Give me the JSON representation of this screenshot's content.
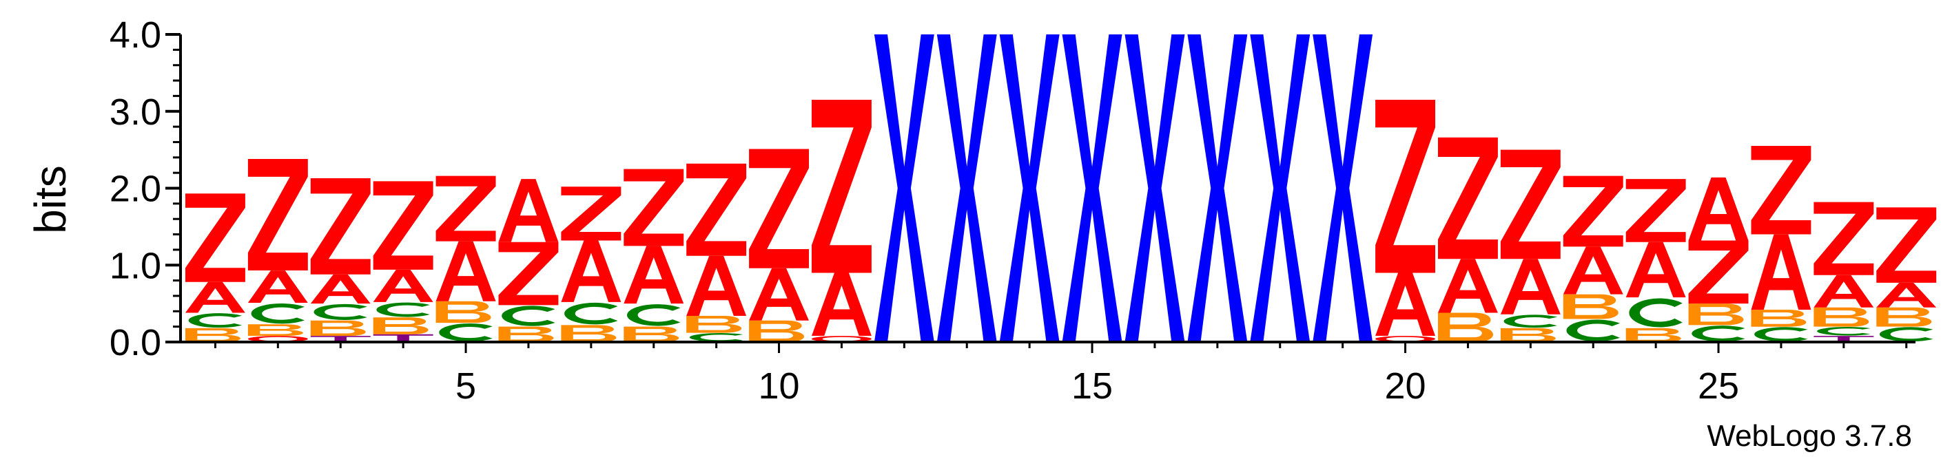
{
  "chart_data": {
    "type": "sequence-logo",
    "ylabel": "bits",
    "ylim": [
      0,
      4.0
    ],
    "y_ticks": [
      "0.0",
      "1.0",
      "2.0",
      "3.0",
      "4.0"
    ],
    "x_ticks": [
      5,
      10,
      15,
      20,
      25
    ],
    "x_range": [
      1,
      28
    ],
    "footer": "WebLogo 3.7.8",
    "colors": {
      "Z": "#ff0000",
      "A": "#ff0000",
      "X": "#0000ff",
      "C": "#008000",
      "B": "#ff8c00",
      "T": "#800080",
      "O": "#ff0000"
    },
    "positions": [
      {
        "pos": 1,
        "stack": [
          [
            "B",
            0.18
          ],
          [
            "C",
            0.2
          ],
          [
            "A",
            0.4
          ],
          [
            "Z",
            1.15
          ]
        ]
      },
      {
        "pos": 2,
        "stack": [
          [
            "O",
            0.08
          ],
          [
            "B",
            0.15
          ],
          [
            "C",
            0.28
          ],
          [
            "A",
            0.42
          ],
          [
            "Z",
            1.45
          ]
        ]
      },
      {
        "pos": 3,
        "stack": [
          [
            "T",
            0.08
          ],
          [
            "B",
            0.2
          ],
          [
            "C",
            0.22
          ],
          [
            "A",
            0.38
          ],
          [
            "Z",
            1.25
          ]
        ]
      },
      {
        "pos": 4,
        "stack": [
          [
            "T",
            0.1
          ],
          [
            "B",
            0.22
          ],
          [
            "C",
            0.2
          ],
          [
            "A",
            0.42
          ],
          [
            "Z",
            1.15
          ]
        ]
      },
      {
        "pos": 5,
        "stack": [
          [
            "C",
            0.25
          ],
          [
            "B",
            0.28
          ],
          [
            "A",
            0.78
          ],
          [
            "Z",
            0.85
          ]
        ]
      },
      {
        "pos": 6,
        "stack": [
          [
            "B",
            0.2
          ],
          [
            "C",
            0.28
          ],
          [
            "Z",
            0.82
          ],
          [
            "A",
            0.82
          ]
        ]
      },
      {
        "pos": 7,
        "stack": [
          [
            "B",
            0.22
          ],
          [
            "C",
            0.3
          ],
          [
            "A",
            0.8
          ],
          [
            "Z",
            0.7
          ]
        ]
      },
      {
        "pos": 8,
        "stack": [
          [
            "B",
            0.2
          ],
          [
            "C",
            0.3
          ],
          [
            "A",
            0.75
          ],
          [
            "Z",
            1.0
          ]
        ]
      },
      {
        "pos": 9,
        "stack": [
          [
            "C",
            0.12
          ],
          [
            "B",
            0.22
          ],
          [
            "A",
            0.78
          ],
          [
            "Z",
            1.2
          ]
        ]
      },
      {
        "pos": 10,
        "stack": [
          [
            "B",
            0.28
          ],
          [
            "A",
            0.68
          ],
          [
            "Z",
            1.55
          ]
        ]
      },
      {
        "pos": 11,
        "stack": [
          [
            "O",
            0.08
          ],
          [
            "A",
            0.82
          ],
          [
            "Z",
            2.25
          ]
        ]
      },
      {
        "pos": 12,
        "stack": [
          [
            "X",
            4.0
          ]
        ]
      },
      {
        "pos": 13,
        "stack": [
          [
            "X",
            4.0
          ]
        ]
      },
      {
        "pos": 14,
        "stack": [
          [
            "X",
            4.0
          ]
        ]
      },
      {
        "pos": 15,
        "stack": [
          [
            "X",
            4.0
          ]
        ]
      },
      {
        "pos": 16,
        "stack": [
          [
            "X",
            4.0
          ]
        ]
      },
      {
        "pos": 17,
        "stack": [
          [
            "X",
            4.0
          ]
        ]
      },
      {
        "pos": 18,
        "stack": [
          [
            "X",
            4.0
          ]
        ]
      },
      {
        "pos": 19,
        "stack": [
          [
            "X",
            4.0
          ]
        ]
      },
      {
        "pos": 20,
        "stack": [
          [
            "O",
            0.08
          ],
          [
            "A",
            0.82
          ],
          [
            "Z",
            2.25
          ]
        ]
      },
      {
        "pos": 21,
        "stack": [
          [
            "B",
            0.38
          ],
          [
            "A",
            0.7
          ],
          [
            "Z",
            1.58
          ]
        ]
      },
      {
        "pos": 22,
        "stack": [
          [
            "B",
            0.18
          ],
          [
            "C",
            0.18
          ],
          [
            "A",
            0.72
          ],
          [
            "Z",
            1.42
          ]
        ]
      },
      {
        "pos": 23,
        "stack": [
          [
            "C",
            0.3
          ],
          [
            "B",
            0.32
          ],
          [
            "A",
            0.62
          ],
          [
            "Z",
            0.92
          ]
        ]
      },
      {
        "pos": 24,
        "stack": [
          [
            "B",
            0.18
          ],
          [
            "C",
            0.4
          ],
          [
            "A",
            0.72
          ],
          [
            "Z",
            0.82
          ]
        ]
      },
      {
        "pos": 25,
        "stack": [
          [
            "C",
            0.22
          ],
          [
            "B",
            0.28
          ],
          [
            "Z",
            0.82
          ],
          [
            "A",
            0.82
          ]
        ]
      },
      {
        "pos": 26,
        "stack": [
          [
            "C",
            0.2
          ],
          [
            "B",
            0.22
          ],
          [
            "A",
            0.98
          ],
          [
            "Z",
            1.15
          ]
        ]
      },
      {
        "pos": 27,
        "stack": [
          [
            "T",
            0.08
          ],
          [
            "C",
            0.12
          ],
          [
            "B",
            0.25
          ],
          [
            "A",
            0.42
          ],
          [
            "Z",
            0.95
          ]
        ]
      },
      {
        "pos": 28,
        "stack": [
          [
            "C",
            0.2
          ],
          [
            "B",
            0.25
          ],
          [
            "A",
            0.32
          ],
          [
            "Z",
            0.98
          ]
        ]
      }
    ]
  }
}
